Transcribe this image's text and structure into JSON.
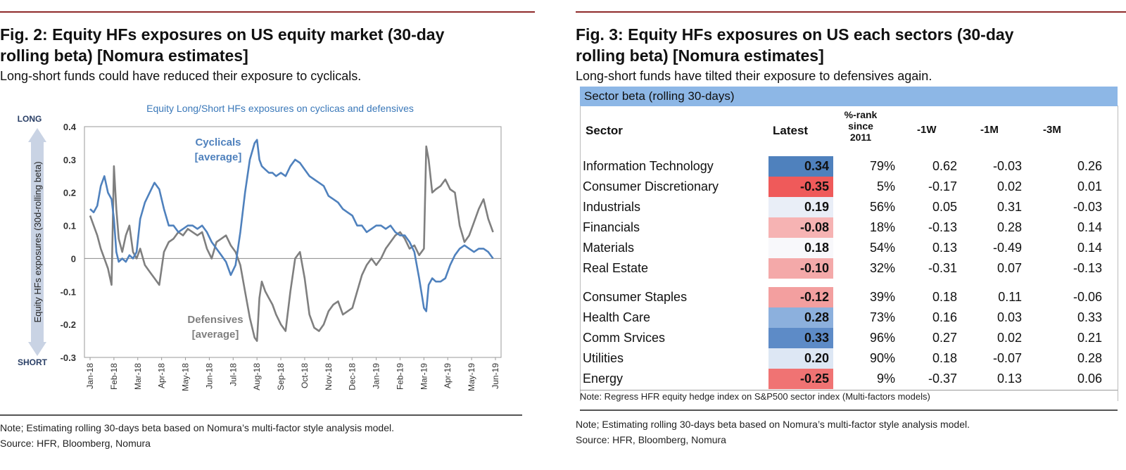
{
  "left": {
    "title": "Fig. 2: Equity HFs exposures on US equity market (30-day\nrolling beta) [Nomura estimates]",
    "subtitle": "Long-short funds could have reduced their exposure to cyclicals.",
    "note1": "Note; Estimating rolling 30-days beta based on Nomura’s multi-factor style analysis model.",
    "note2": "Source: HFR, Bloomberg, Nomura"
  },
  "chart_data": {
    "type": "line",
    "title": "Equity Long/Short HFs exposures on cyclicas and defensives",
    "ylabel": "Equity HFs exposures (30d-rolling beta)",
    "ylabel_top": "LONG",
    "ylabel_bottom": "SHORT",
    "ylim": [
      -0.3,
      0.4
    ],
    "yticks": [
      0.4,
      0.3,
      0.2,
      0.1,
      0,
      -0.1,
      -0.2,
      -0.3
    ],
    "ytick_labels": [
      "0.4",
      "0.3",
      "0.2",
      "0.1",
      "0",
      "-0.1",
      "-0.2",
      "-0.3"
    ],
    "x_labels": [
      "Jan-18",
      "Feb-18",
      "Mar-18",
      "Apr-18",
      "May-18",
      "Jun-18",
      "Jul-18",
      "Aug-18",
      "Sep-18",
      "Oct-18",
      "Nov-18",
      "Dec-18",
      "Jan-19",
      "Feb-19",
      "Mar-19",
      "Apr-19",
      "May-19",
      "Jun-19"
    ],
    "zero_line": true,
    "grid": false,
    "series": [
      {
        "name": "Cyclicals [average]",
        "color": "#4f81bd",
        "x": [
          0,
          0.15,
          0.3,
          0.45,
          0.6,
          0.75,
          0.9,
          1.0,
          1.1,
          1.2,
          1.35,
          1.5,
          1.65,
          1.8,
          1.95,
          2.1,
          2.3,
          2.5,
          2.7,
          2.9,
          3.1,
          3.3,
          3.5,
          3.7,
          3.9,
          4.1,
          4.3,
          4.5,
          4.7,
          4.9,
          5.1,
          5.3,
          5.5,
          5.7,
          5.9,
          6.1,
          6.3,
          6.5,
          6.7,
          6.9,
          7.0,
          7.1,
          7.2,
          7.35,
          7.5,
          7.65,
          7.8,
          8.0,
          8.2,
          8.4,
          8.6,
          8.8,
          9.0,
          9.2,
          9.4,
          9.6,
          9.8,
          10.0,
          10.2,
          10.4,
          10.6,
          10.8,
          11.0,
          11.2,
          11.4,
          11.6,
          11.8,
          12.0,
          12.2,
          12.4,
          12.6,
          12.8,
          13.0,
          13.2,
          13.4,
          13.6,
          13.8,
          14.0,
          14.1,
          14.2,
          14.35,
          14.5,
          14.7,
          14.9,
          15.1,
          15.3,
          15.5,
          15.7,
          15.9,
          16.1,
          16.3,
          16.5,
          16.7,
          16.9
        ],
        "y": [
          0.15,
          0.14,
          0.16,
          0.22,
          0.25,
          0.2,
          0.18,
          0.12,
          0.02,
          -0.01,
          0.0,
          -0.01,
          0.01,
          0.0,
          0.02,
          0.12,
          0.17,
          0.2,
          0.23,
          0.21,
          0.15,
          0.1,
          0.1,
          0.08,
          0.09,
          0.1,
          0.1,
          0.09,
          0.1,
          0.08,
          0.05,
          0.03,
          0.01,
          -0.01,
          -0.05,
          -0.02,
          0.08,
          0.2,
          0.3,
          0.35,
          0.36,
          0.3,
          0.28,
          0.27,
          0.26,
          0.26,
          0.25,
          0.26,
          0.25,
          0.28,
          0.3,
          0.29,
          0.27,
          0.25,
          0.24,
          0.23,
          0.22,
          0.19,
          0.18,
          0.17,
          0.15,
          0.14,
          0.13,
          0.1,
          0.1,
          0.08,
          0.09,
          0.1,
          0.1,
          0.09,
          0.1,
          0.08,
          0.07,
          0.07,
          0.05,
          0.02,
          -0.06,
          -0.15,
          -0.16,
          -0.08,
          -0.06,
          -0.07,
          -0.07,
          -0.06,
          -0.02,
          0.01,
          0.03,
          0.04,
          0.03,
          0.02,
          0.03,
          0.03,
          0.02,
          0.0
        ]
      },
      {
        "name": "Defensives [average]",
        "color": "#7f7f7f",
        "x": [
          0,
          0.15,
          0.3,
          0.45,
          0.6,
          0.75,
          0.9,
          1.0,
          1.1,
          1.2,
          1.35,
          1.5,
          1.65,
          1.8,
          1.95,
          2.1,
          2.3,
          2.5,
          2.7,
          2.9,
          3.1,
          3.3,
          3.5,
          3.7,
          3.9,
          4.1,
          4.3,
          4.5,
          4.7,
          4.9,
          5.1,
          5.3,
          5.5,
          5.7,
          5.9,
          6.1,
          6.3,
          6.5,
          6.7,
          6.9,
          7.0,
          7.1,
          7.2,
          7.35,
          7.5,
          7.65,
          7.8,
          8.0,
          8.2,
          8.4,
          8.6,
          8.8,
          9.0,
          9.2,
          9.4,
          9.6,
          9.8,
          10.0,
          10.2,
          10.4,
          10.6,
          10.8,
          11.0,
          11.2,
          11.4,
          11.6,
          11.8,
          12.0,
          12.2,
          12.4,
          12.6,
          12.8,
          13.0,
          13.2,
          13.4,
          13.6,
          13.8,
          14.0,
          14.1,
          14.2,
          14.35,
          14.5,
          14.7,
          14.9,
          15.1,
          15.3,
          15.5,
          15.7,
          15.9,
          16.1,
          16.3,
          16.5,
          16.7,
          16.9
        ],
        "y": [
          0.13,
          0.1,
          0.07,
          0.03,
          0.0,
          -0.03,
          -0.08,
          0.28,
          0.15,
          0.06,
          0.02,
          0.07,
          0.1,
          0.02,
          0.0,
          0.03,
          -0.02,
          -0.04,
          -0.06,
          -0.08,
          0.02,
          0.05,
          0.06,
          0.08,
          0.07,
          0.09,
          0.08,
          0.07,
          0.08,
          0.03,
          0.0,
          0.05,
          0.06,
          0.07,
          0.04,
          0.02,
          -0.02,
          -0.1,
          -0.18,
          -0.24,
          -0.25,
          -0.12,
          -0.07,
          -0.1,
          -0.12,
          -0.14,
          -0.17,
          -0.2,
          -0.22,
          -0.1,
          0.0,
          0.02,
          -0.06,
          -0.17,
          -0.21,
          -0.22,
          -0.2,
          -0.16,
          -0.14,
          -0.13,
          -0.17,
          -0.16,
          -0.15,
          -0.1,
          -0.05,
          -0.02,
          0.0,
          -0.02,
          0.0,
          0.03,
          0.05,
          0.07,
          0.08,
          0.06,
          0.03,
          0.04,
          0.01,
          0.03,
          0.34,
          0.3,
          0.2,
          0.21,
          0.22,
          0.24,
          0.21,
          0.2,
          0.1,
          0.05,
          0.07,
          0.11,
          0.15,
          0.18,
          0.12,
          0.08
        ]
      }
    ],
    "annotations": [
      {
        "text_lines": [
          "Cyclicals",
          "[average]"
        ],
        "color": "#4f81bd"
      },
      {
        "text_lines": [
          "Defensives",
          "[average]"
        ],
        "color": "#7f7f7f"
      }
    ]
  },
  "right": {
    "title": "Fig. 3: Equity HFs exposures on US each sectors (30-day\nrolling beta) [Nomura estimates]",
    "subtitle": "Long-short funds have tilted their exposure to defensives again.",
    "table_title": "Sector beta (rolling 30-days)",
    "headers": {
      "sector": "Sector",
      "latest": "Latest",
      "rank": "%-rank\nsince\n2011",
      "w1": "-1W",
      "m1": "-1M",
      "m3": "-3M"
    },
    "rows": [
      {
        "sector": "Information Technology",
        "latest": "0.34",
        "rank": "79%",
        "w1": "0.62",
        "m1": "-0.03",
        "m3": "0.26",
        "bg": "#4f81bd"
      },
      {
        "sector": "Consumer Discretionary",
        "latest": "-0.35",
        "rank": "5%",
        "w1": "-0.17",
        "m1": "0.02",
        "m3": "0.01",
        "bg": "#ef5a5a"
      },
      {
        "sector": "Industrials",
        "latest": "0.19",
        "rank": "56%",
        "w1": "0.05",
        "m1": "0.31",
        "m3": "-0.03",
        "bg": "#e9eef7"
      },
      {
        "sector": "Financials",
        "latest": "-0.08",
        "rank": "18%",
        "w1": "-0.13",
        "m1": "0.28",
        "m3": "0.14",
        "bg": "#f6b3b3"
      },
      {
        "sector": "Materials",
        "latest": "0.18",
        "rank": "54%",
        "w1": "0.13",
        "m1": "-0.49",
        "m3": "0.14",
        "bg": "#f8f8fb"
      },
      {
        "sector": "Real Estate",
        "latest": "-0.10",
        "rank": "32%",
        "w1": "-0.31",
        "m1": "0.07",
        "m3": "-0.13",
        "bg": "#f4a9a9"
      },
      {
        "sector": "Consumer Staples",
        "latest": "-0.12",
        "rank": "39%",
        "w1": "0.18",
        "m1": "0.11",
        "m3": "-0.06",
        "bg": "#f39f9f"
      },
      {
        "sector": "Health Care",
        "latest": "0.28",
        "rank": "73%",
        "w1": "0.16",
        "m1": "0.03",
        "m3": "0.33",
        "bg": "#8cb0dd"
      },
      {
        "sector": "Comm Srvices",
        "latest": "0.33",
        "rank": "96%",
        "w1": "0.27",
        "m1": "0.02",
        "m3": "0.21",
        "bg": "#5d8bc7"
      },
      {
        "sector": "Utilities",
        "latest": "0.20",
        "rank": "90%",
        "w1": "0.18",
        "m1": "-0.07",
        "m3": "0.28",
        "bg": "#dde7f4"
      },
      {
        "sector": "Energy",
        "latest": "-0.25",
        "rank": "9%",
        "w1": "-0.37",
        "m1": "0.13",
        "m3": "0.06",
        "bg": "#f07373"
      }
    ],
    "table_note": "Note: Regress HFR equity hedge index on S&P500 sector index (Multi-factors models)",
    "note1": "Note; Estimating rolling 30-days beta based on Nomura’s multi-factor style analysis model.",
    "note2": "Source: HFR, Bloomberg, Nomura"
  }
}
